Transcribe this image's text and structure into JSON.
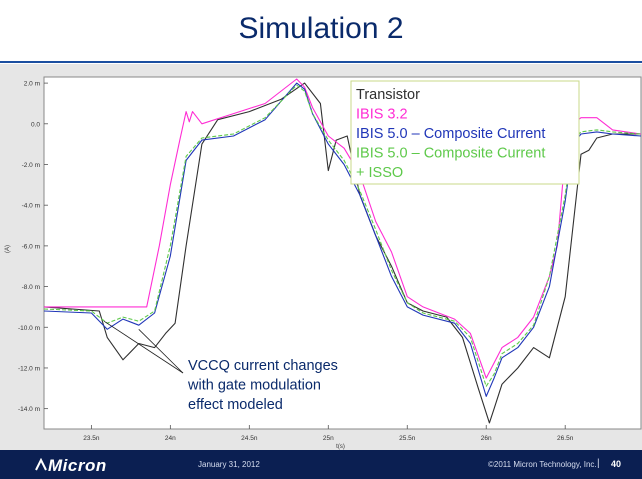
{
  "slide": {
    "title": "Simulation 2"
  },
  "footer": {
    "logo": "Micron",
    "date": "January 31, 2012",
    "copyright": "©2011 Micron Technology, Inc.",
    "separator": "|",
    "page": "40"
  },
  "colors": {
    "transistor": "#303030",
    "ibis32": "#ff2dd4",
    "ibis50": "#2036b8",
    "ibis50_isso": "#5ec94a",
    "legend_border": "#c8d88a",
    "title": "#0a2a6b",
    "footer_bg": "#0b1f52"
  },
  "chart_data": {
    "type": "line",
    "xlabel": "t(s)",
    "ylabel": "(A)",
    "xlim": [
      23.2,
      26.98
    ],
    "ylim": [
      -15.0,
      2.3
    ],
    "x_ticks": [
      23.5,
      24,
      24.5,
      25,
      25.5,
      26,
      26.5
    ],
    "x_tick_labels": [
      "23.5n",
      "24n",
      "24.5n",
      "25n",
      "25.5n",
      "26n",
      "26.5n"
    ],
    "y_ticks": [
      2,
      0,
      -2,
      -4,
      -6,
      -8,
      -10,
      -12,
      -14
    ],
    "y_tick_labels": [
      "2.0 m",
      "0.0",
      "-2.0 m",
      "-4.0 m",
      "-6.0 m",
      "-8.0 m",
      "-10.0 m",
      "-12.0 m",
      "-14.0 m"
    ],
    "grid": false,
    "legend_position": "top-right",
    "series": [
      {
        "name": "Transistor",
        "x": [
          23.2,
          23.55,
          23.6,
          23.7,
          23.8,
          23.9,
          23.97,
          24.03,
          24.1,
          24.2,
          24.3,
          24.5,
          24.7,
          24.85,
          24.95,
          25.0,
          25.05,
          25.12,
          25.2,
          25.3,
          25.4,
          25.5,
          25.6,
          25.75,
          25.85,
          25.95,
          26.02,
          26.05,
          26.1,
          26.2,
          26.3,
          26.4,
          26.5,
          26.55,
          26.6,
          26.65,
          26.7,
          26.8,
          26.98
        ],
        "y": [
          -9.0,
          -9.2,
          -10.5,
          -11.6,
          -10.8,
          -11.0,
          -10.3,
          -9.8,
          -6.0,
          -1.0,
          0.2,
          0.6,
          1.2,
          2.0,
          1.0,
          -2.3,
          -0.8,
          -0.6,
          -3.5,
          -5.5,
          -7.0,
          -8.8,
          -9.2,
          -9.5,
          -10.5,
          -13.0,
          -14.7,
          -14.0,
          -12.8,
          -12.0,
          -11.0,
          -11.5,
          -8.5,
          -5.0,
          -1.5,
          -1.3,
          -0.7,
          -0.5,
          -0.5
        ]
      },
      {
        "name": "IBIS 3.2",
        "x": [
          23.2,
          23.5,
          23.7,
          23.85,
          23.93,
          24.0,
          24.06,
          24.1,
          24.12,
          24.14,
          24.2,
          24.4,
          24.6,
          24.8,
          24.85,
          24.9,
          25.0,
          25.1,
          25.2,
          25.3,
          25.4,
          25.5,
          25.6,
          25.8,
          25.9,
          26.0,
          26.1,
          26.2,
          26.3,
          26.4,
          26.45,
          26.5,
          26.55,
          26.6,
          26.7,
          26.8,
          26.98
        ],
        "y": [
          -9.0,
          -9.0,
          -9.0,
          -9.0,
          -6.0,
          -3.0,
          -0.8,
          0.6,
          0.1,
          0.6,
          0.0,
          0.5,
          1.0,
          2.2,
          1.8,
          0.8,
          -0.6,
          -1.2,
          -2.5,
          -4.8,
          -6.3,
          -8.5,
          -9.0,
          -9.6,
          -10.3,
          -12.5,
          -11.0,
          -10.5,
          -9.5,
          -7.5,
          -6.0,
          -1.5,
          0.0,
          0.3,
          0.3,
          -0.3,
          -0.5
        ]
      },
      {
        "name": "IBIS 5.0 – Composite Current",
        "x": [
          23.2,
          23.5,
          23.6,
          23.7,
          23.8,
          23.9,
          24.0,
          24.1,
          24.2,
          24.4,
          24.6,
          24.8,
          24.85,
          24.9,
          25.0,
          25.1,
          25.2,
          25.3,
          25.4,
          25.5,
          25.6,
          25.8,
          25.9,
          26.0,
          26.05,
          26.1,
          26.2,
          26.3,
          26.4,
          26.5,
          26.55,
          26.6,
          26.7,
          26.8,
          26.98
        ],
        "y": [
          -9.2,
          -9.3,
          -10.1,
          -9.6,
          -9.9,
          -9.3,
          -6.5,
          -1.8,
          -0.8,
          -0.6,
          0.2,
          2.0,
          1.7,
          0.5,
          -1.0,
          -2.0,
          -3.5,
          -5.5,
          -7.5,
          -9.0,
          -9.4,
          -9.8,
          -10.8,
          -13.4,
          -12.5,
          -11.5,
          -11.0,
          -10.0,
          -8.0,
          -3.8,
          -1.0,
          -0.5,
          -0.4,
          -0.5,
          -0.6
        ]
      },
      {
        "name": "IBIS 5.0 – Composite Current + ISSO",
        "x": [
          23.2,
          23.5,
          23.6,
          23.7,
          23.8,
          23.9,
          24.0,
          24.1,
          24.2,
          24.4,
          24.6,
          24.8,
          24.85,
          24.9,
          25.0,
          25.1,
          25.2,
          25.3,
          25.4,
          25.5,
          25.6,
          25.8,
          25.9,
          26.0,
          26.05,
          26.1,
          26.2,
          26.3,
          26.4,
          26.5,
          26.55,
          26.6,
          26.7,
          26.8,
          26.98
        ],
        "y": [
          -9.1,
          -9.2,
          -9.8,
          -9.5,
          -9.7,
          -9.2,
          -6.0,
          -1.6,
          -0.7,
          -0.5,
          0.3,
          1.9,
          1.6,
          0.5,
          -0.8,
          -1.8,
          -3.3,
          -5.2,
          -7.2,
          -8.8,
          -9.3,
          -9.7,
          -10.5,
          -12.9,
          -12.3,
          -11.3,
          -10.8,
          -9.9,
          -7.5,
          -3.5,
          -0.8,
          -0.4,
          -0.3,
          -0.4,
          -0.5
        ]
      }
    ],
    "legend": [
      "Transistor",
      "IBIS 3.2",
      "IBIS 5.0 – Composite Current",
      "IBIS 5.0 – Composite Current",
      "+ ISSO"
    ],
    "annotation": {
      "lines": [
        "VCCQ current changes",
        "with gate modulation",
        "effect modeled"
      ],
      "points_to": [
        [
          23.58,
          -9.7
        ],
        [
          23.8,
          -10.1
        ]
      ]
    }
  }
}
